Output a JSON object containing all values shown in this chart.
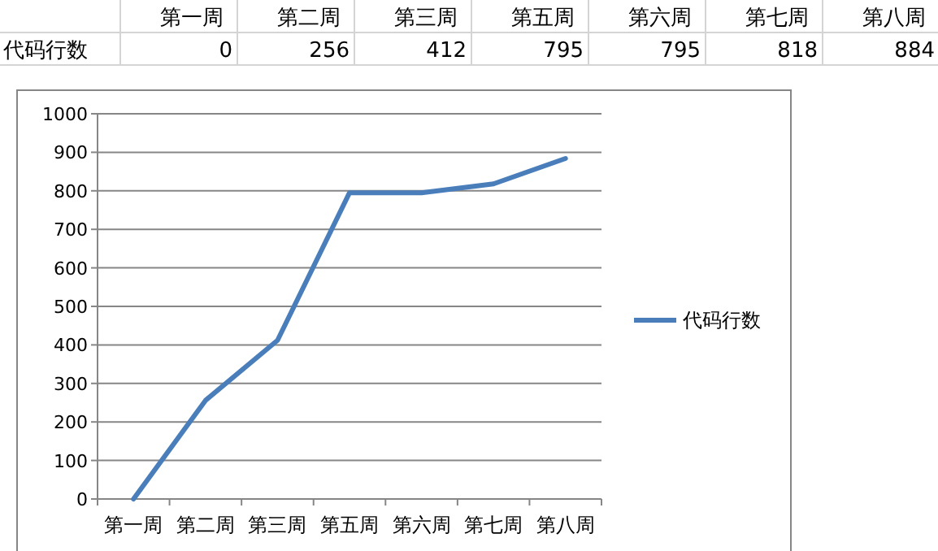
{
  "chart_data": [
    {
      "type": "other",
      "categories": [
        "第一周",
        "第二周",
        "第三周",
        "第五周",
        "第六周",
        "第七周",
        "第八周"
      ],
      "series": [
        {
          "name": "代码行数",
          "values": [
            0,
            256,
            412,
            795,
            795,
            818,
            884
          ]
        }
      ],
      "data_labels": true
    },
    {
      "type": "line",
      "categories": [
        "第一周",
        "第二周",
        "第三周",
        "第五周",
        "第六周",
        "第七周",
        "第八周"
      ],
      "series": [
        {
          "name": "代码行数",
          "color": "#4a7ebb",
          "values": [
            0,
            256,
            412,
            795,
            795,
            818,
            884
          ]
        }
      ],
      "ylim": [
        0,
        1000
      ],
      "yticks": [
        0,
        100,
        200,
        300,
        400,
        500,
        600,
        700,
        800,
        900,
        1000
      ],
      "grid": "y",
      "legend": "right",
      "marker": "none",
      "line_style": "solid"
    }
  ]
}
